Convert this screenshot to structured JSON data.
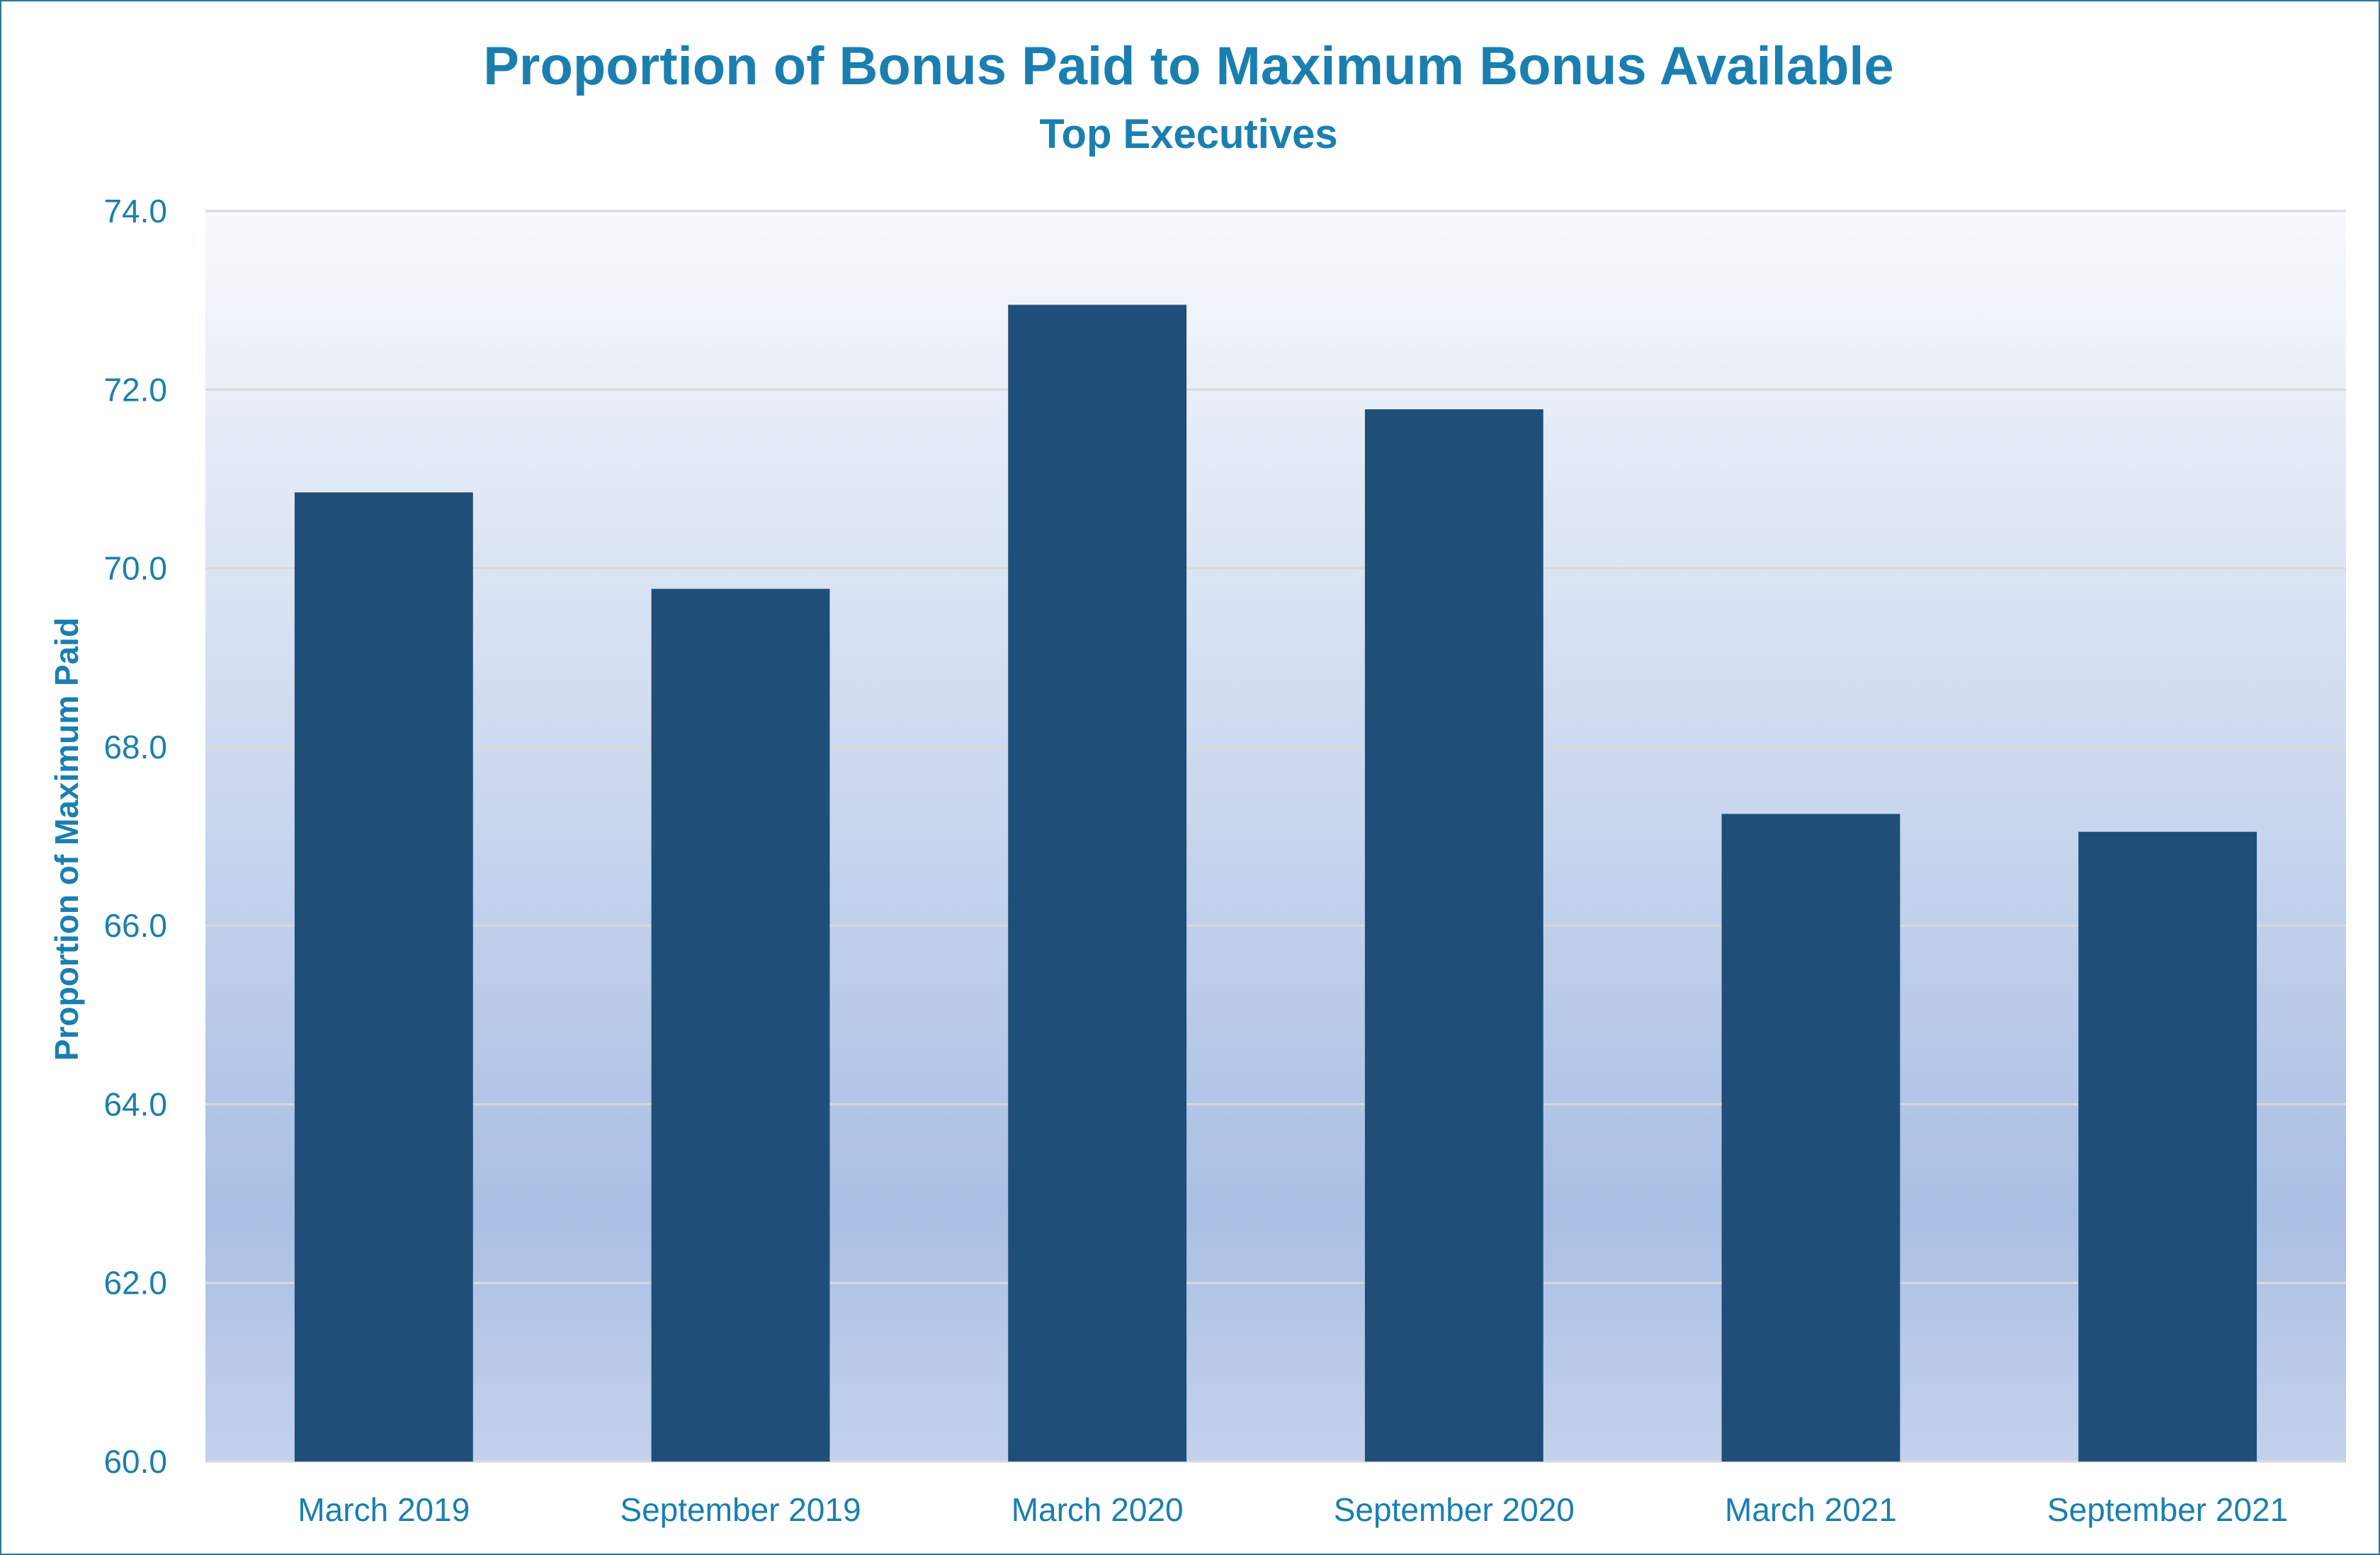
{
  "chart_data": {
    "type": "bar",
    "title": "Proportion of Bonus Paid to Maximum Bonus Available",
    "subtitle": "Top Executives",
    "xlabel": "",
    "ylabel": "Proportion of Maximum Paid",
    "categories": [
      "March 2019",
      "September 2019",
      "March 2020",
      "September 2020",
      "March 2021",
      "September 2021"
    ],
    "values": [
      70.85,
      69.77,
      72.95,
      71.78,
      67.25,
      67.05
    ],
    "ylim": [
      60,
      74
    ],
    "yticks": [
      "60.0",
      "62.0",
      "64.0",
      "66.0",
      "68.0",
      "70.0",
      "72.0",
      "74.0"
    ],
    "grid": true,
    "legend": "none",
    "colors": {
      "bar": "#1f4e79",
      "text": "#1a7fb0",
      "gridline": "#d9d9d9",
      "plot_bg_top": "#f7f9fc",
      "plot_bg_mid": "#aabfe4",
      "plot_bg_bottom": "#c3d1ec"
    }
  }
}
